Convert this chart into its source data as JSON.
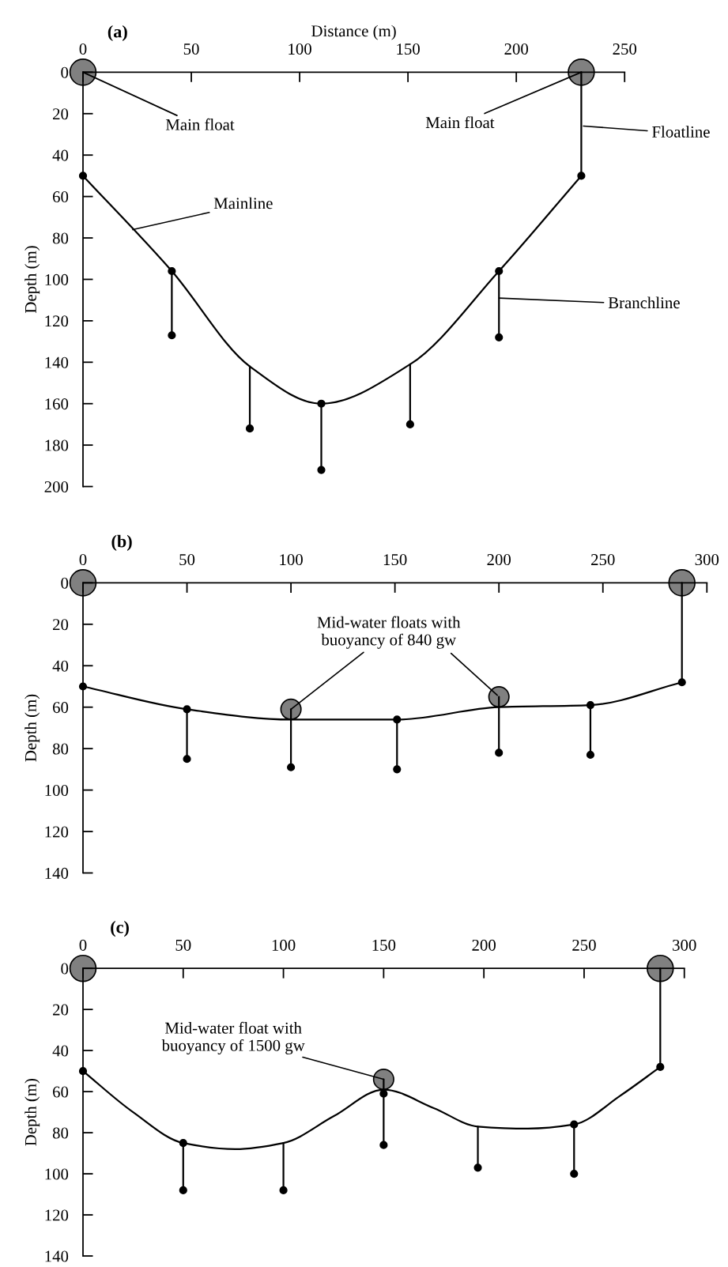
{
  "chart_data": [
    {
      "type": "line",
      "title": "(a)",
      "xlabel": "Distance (m)",
      "ylabel": "Depth (m)",
      "xlim": [
        0,
        250
      ],
      "xticks": [
        0,
        50,
        100,
        150,
        200,
        250
      ],
      "ylim": [
        200,
        0
      ],
      "yticks": [
        0,
        20,
        40,
        60,
        80,
        100,
        120,
        140,
        160,
        180,
        200
      ],
      "grid": false,
      "legend": false,
      "series": [
        {
          "color": "#000000",
          "line_style": "solid",
          "x": [
            0,
            41,
            77,
            110,
            151,
            192,
            230
          ],
          "values": [
            50,
            96,
            142,
            160,
            141,
            96,
            50
          ]
        },
        {
          "type": "line",
          "color": "#000000",
          "line_style": "solid",
          "x": [
            230,
            230
          ],
          "values": [
            0,
            50
          ]
        },
        {
          "type": "line",
          "color": "#000000",
          "line_style": "solid",
          "x": [
            41,
            41
          ],
          "values": [
            96,
            127
          ]
        },
        {
          "type": "line",
          "color": "#000000",
          "line_style": "solid",
          "x": [
            77,
            77
          ],
          "values": [
            142,
            172
          ]
        },
        {
          "type": "line",
          "color": "#000000",
          "line_style": "solid",
          "x": [
            110,
            110
          ],
          "values": [
            160,
            192
          ]
        },
        {
          "type": "line",
          "color": "#000000",
          "line_style": "solid",
          "x": [
            151,
            151
          ],
          "values": [
            141,
            170
          ]
        },
        {
          "type": "line",
          "color": "#000000",
          "line_style": "solid",
          "x": [
            192,
            192
          ],
          "values": [
            96,
            128
          ]
        },
        {
          "type": "scatter",
          "marker": "circle",
          "color": "#000000",
          "x": [
            0,
            41,
            110,
            192,
            230,
            41,
            77,
            110,
            151,
            192
          ],
          "values": [
            50,
            96,
            160,
            96,
            50,
            127,
            172,
            192,
            170,
            128
          ]
        },
        {
          "type": "scatter",
          "marker": "circle",
          "color": "#808080",
          "x": [
            0,
            230
          ],
          "values": [
            0,
            0
          ],
          "sizes": [
            1,
            1
          ]
        }
      ],
      "annotations": [
        {
          "text": "Main float",
          "x": 0,
          "y": 0
        },
        {
          "text": "Main float",
          "x": 230,
          "y": 0
        },
        "Floatline",
        {
          "text": "Mainline",
          "x": 23,
          "y": 76
        },
        {
          "text": "Branchline",
          "x": 192,
          "y": 109
        }
      ]
    },
    {
      "type": "line",
      "title": "(b)",
      "ylabel": "Depth (m)",
      "xlim": [
        0,
        300
      ],
      "xticks": [
        0,
        50,
        100,
        150,
        200,
        250,
        300
      ],
      "ylim": [
        140,
        0
      ],
      "yticks": [
        0,
        20,
        40,
        60,
        80,
        100,
        120,
        140
      ],
      "grid": false,
      "legend": false,
      "series": [
        {
          "color": "#000000",
          "line_style": "solid",
          "x": [
            0,
            50,
            100,
            151,
            200,
            244,
            288
          ],
          "values": [
            50,
            61,
            66,
            66,
            60,
            59,
            48
          ]
        },
        {
          "type": "line",
          "color": "#000000",
          "line_style": "solid",
          "x": [
            288,
            288
          ],
          "values": [
            0,
            48
          ]
        },
        {
          "type": "line",
          "color": "#000000",
          "line_style": "solid",
          "x": [
            50,
            50
          ],
          "values": [
            61,
            85
          ]
        },
        {
          "type": "line",
          "color": "#000000",
          "line_style": "solid",
          "x": [
            100,
            100
          ],
          "values": [
            61,
            89
          ]
        },
        {
          "type": "line",
          "color": "#000000",
          "line_style": "solid",
          "x": [
            151,
            151
          ],
          "values": [
            66,
            90
          ]
        },
        {
          "type": "line",
          "color": "#000000",
          "line_style": "solid",
          "x": [
            200,
            200
          ],
          "values": [
            55,
            82
          ]
        },
        {
          "type": "line",
          "color": "#000000",
          "line_style": "solid",
          "x": [
            244,
            244
          ],
          "values": [
            59,
            83
          ]
        },
        {
          "type": "scatter",
          "marker": "circle",
          "color": "#000000",
          "x": [
            0,
            50,
            151,
            244,
            288,
            50,
            100,
            151,
            200,
            244
          ],
          "values": [
            50,
            61,
            66,
            59,
            48,
            85,
            89,
            90,
            82,
            83
          ]
        },
        {
          "type": "scatter",
          "marker": "circle",
          "color": "#808080",
          "x": [
            0,
            288
          ],
          "values": [
            0,
            0
          ],
          "sizes": [
            1,
            1
          ]
        },
        {
          "type": "scatter",
          "marker": "circle",
          "color": "#808080",
          "x": [
            100,
            200
          ],
          "values": [
            61,
            55
          ],
          "sizes": [
            0.6,
            0.6
          ]
        }
      ],
      "annotations": [
        {
          "text": "Mid-water floats with\nbuoyancy of 840 gw",
          "x": 100,
          "y": 61
        }
      ]
    },
    {
      "type": "line",
      "title": "(c)",
      "ylabel": "Depth (m)",
      "xlim": [
        0,
        300
      ],
      "xticks": [
        0,
        50,
        100,
        150,
        200,
        250,
        300
      ],
      "ylim": [
        140,
        0
      ],
      "yticks": [
        0,
        20,
        40,
        60,
        80,
        100,
        120,
        140
      ],
      "grid": false,
      "legend": false,
      "series": [
        {
          "color": "#000000",
          "line_style": "solid",
          "x": [
            0,
            25,
            50,
            76,
            100,
            125,
            150,
            175,
            197,
            222,
            245,
            268,
            288
          ],
          "values": [
            50,
            70,
            85,
            88,
            85,
            72,
            59,
            68,
            77,
            78,
            76,
            62,
            48
          ]
        },
        {
          "type": "line",
          "color": "#000000",
          "line_style": "solid",
          "x": [
            288,
            288
          ],
          "values": [
            0,
            48
          ]
        },
        {
          "type": "line",
          "color": "#000000",
          "line_style": "solid",
          "x": [
            50,
            50
          ],
          "values": [
            85,
            108
          ]
        },
        {
          "type": "line",
          "color": "#000000",
          "line_style": "solid",
          "x": [
            100,
            100
          ],
          "values": [
            85,
            108
          ]
        },
        {
          "type": "line",
          "color": "#000000",
          "line_style": "solid",
          "x": [
            150,
            150
          ],
          "values": [
            54,
            86
          ]
        },
        {
          "type": "line",
          "color": "#000000",
          "line_style": "solid",
          "x": [
            197,
            197
          ],
          "values": [
            77,
            97
          ]
        },
        {
          "type": "line",
          "color": "#000000",
          "line_style": "solid",
          "x": [
            245,
            245
          ],
          "values": [
            76,
            100
          ]
        },
        {
          "type": "scatter",
          "marker": "circle",
          "color": "#000000",
          "x": [
            0,
            50,
            150,
            245,
            288,
            50,
            100,
            150,
            197,
            245
          ],
          "values": [
            50,
            85,
            61,
            76,
            48,
            108,
            108,
            86,
            97,
            100
          ]
        },
        {
          "type": "scatter",
          "marker": "circle",
          "color": "#808080",
          "x": [
            0,
            288
          ],
          "values": [
            0,
            0
          ],
          "sizes": [
            1,
            1
          ]
        },
        {
          "type": "scatter",
          "marker": "circle",
          "color": "#808080",
          "x": [
            150
          ],
          "values": [
            54
          ],
          "sizes": [
            0.6
          ]
        }
      ],
      "annotations": [
        {
          "text": "Mid-water float with\nbuoyancy of 1500 gw",
          "x": 150,
          "y": 54
        }
      ]
    }
  ]
}
